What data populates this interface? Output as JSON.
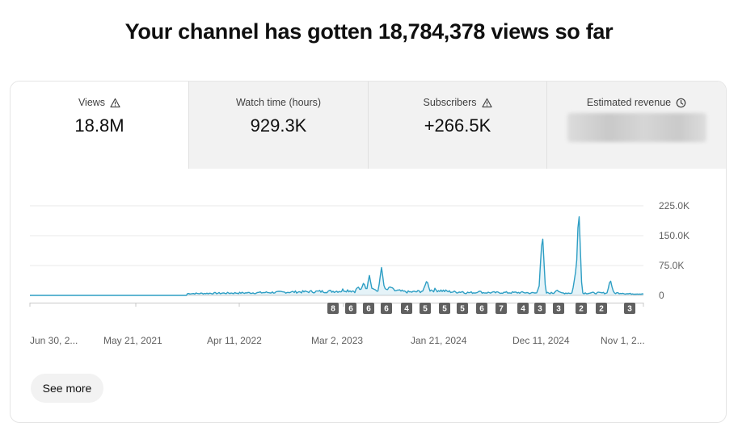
{
  "headline": "Your channel has gotten 18,784,378 views so far",
  "tabs": [
    {
      "label": "Views",
      "value": "18.8M",
      "icon": "warning-icon",
      "active": true
    },
    {
      "label": "Watch time (hours)",
      "value": "929.3K",
      "icon": "",
      "active": false
    },
    {
      "label": "Subscribers",
      "value": "+266.5K",
      "icon": "warning-icon",
      "active": false
    },
    {
      "label": "Estimated revenue",
      "value": "",
      "icon": "clock-icon",
      "active": false,
      "blurred": true
    }
  ],
  "chart_data": {
    "type": "line",
    "series": [
      {
        "values": []
      }
    ],
    "y_ticks": [
      "225.0K",
      "150.0K",
      "75.0K",
      "0"
    ],
    "ylim": [
      0,
      225000
    ],
    "x_tick_labels": [
      "Jun 30, 2...",
      "May 21, 2021",
      "Apr 11, 2022",
      "Mar 2, 2023",
      "Jan 21, 2024",
      "Dec 11, 2024",
      "Nov 1, 2..."
    ],
    "markers": [
      "8",
      "6",
      "6",
      "6",
      "4",
      "5",
      "5",
      "5",
      "6",
      "7",
      "4",
      "3",
      "3",
      "2",
      "2",
      "3"
    ],
    "color": "#2d9ec4"
  },
  "see_more_label": "See more"
}
